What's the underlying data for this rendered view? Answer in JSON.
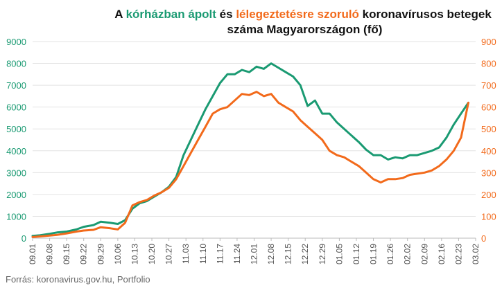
{
  "title": {
    "part1": "A ",
    "part2": "kórházban ápolt",
    "part3": " és ",
    "part4": "lélegeztetésre szoruló",
    "part5": " koronavírusos betegek",
    "line2": "száma Magyarországon  (fő)"
  },
  "source": "Forrás: koronavirus.gov.hu, Portfolio",
  "colors": {
    "hospitalized": "#1a9a72",
    "ventilated": "#f26a1b",
    "grid": "#e3e3e3",
    "axis_text": "#555555"
  },
  "chart_data": {
    "type": "line",
    "x_ticks": [
      "09.01",
      "09.08",
      "09.15",
      "09.22",
      "09.29",
      "10.06",
      "10.13",
      "10.20",
      "10.27",
      "11.03",
      "11.10",
      "11.17",
      "11.24",
      "12.01",
      "12.08",
      "12.15",
      "12.22",
      "12.29",
      "01.05",
      "01.12",
      "01.19",
      "01.26",
      "02.02",
      "02.09",
      "02.16",
      "02.23",
      "03.02"
    ],
    "ylim_left": [
      0,
      9000
    ],
    "ylim_right": [
      0,
      900
    ],
    "y_ticks_left": [
      "0",
      "1000",
      "2000",
      "3000",
      "4000",
      "5000",
      "6000",
      "7000",
      "8000",
      "9000"
    ],
    "y_ticks_right": [
      "0",
      "100",
      "200",
      "300",
      "400",
      "500",
      "600",
      "700",
      "800",
      "900"
    ],
    "series": [
      {
        "name": "kórházban ápolt",
        "axis": "left",
        "values": [
          [
            0,
            100
          ],
          [
            3,
            130
          ],
          [
            7,
            200
          ],
          [
            10,
            260
          ],
          [
            14,
            300
          ],
          [
            18,
            400
          ],
          [
            21,
            520
          ],
          [
            25,
            600
          ],
          [
            28,
            750
          ],
          [
            32,
            700
          ],
          [
            35,
            650
          ],
          [
            38,
            820
          ],
          [
            41,
            1350
          ],
          [
            44,
            1600
          ],
          [
            47,
            1700
          ],
          [
            50,
            1900
          ],
          [
            53,
            2100
          ],
          [
            56,
            2350
          ],
          [
            59,
            2800
          ],
          [
            62,
            3800
          ],
          [
            65,
            4500
          ],
          [
            68,
            5200
          ],
          [
            71,
            5900
          ],
          [
            74,
            6500
          ],
          [
            77,
            7100
          ],
          [
            80,
            7500
          ],
          [
            83,
            7500
          ],
          [
            86,
            7700
          ],
          [
            89,
            7600
          ],
          [
            92,
            7850
          ],
          [
            95,
            7750
          ],
          [
            98,
            8000
          ],
          [
            101,
            7800
          ],
          [
            104,
            7600
          ],
          [
            107,
            7400
          ],
          [
            110,
            7000
          ],
          [
            113,
            6050
          ],
          [
            116,
            6300
          ],
          [
            119,
            5700
          ],
          [
            122,
            5700
          ],
          [
            125,
            5300
          ],
          [
            128,
            5000
          ],
          [
            131,
            4700
          ],
          [
            134,
            4400
          ],
          [
            137,
            4050
          ],
          [
            140,
            3800
          ],
          [
            143,
            3800
          ],
          [
            146,
            3600
          ],
          [
            149,
            3700
          ],
          [
            152,
            3650
          ],
          [
            155,
            3800
          ],
          [
            158,
            3800
          ],
          [
            161,
            3900
          ],
          [
            164,
            4000
          ],
          [
            167,
            4150
          ],
          [
            170,
            4600
          ],
          [
            173,
            5200
          ],
          [
            176,
            5700
          ],
          [
            179,
            6200
          ]
        ]
      },
      {
        "name": "lélegeztetésre szoruló",
        "axis": "right",
        "values": [
          [
            0,
            5
          ],
          [
            3,
            8
          ],
          [
            7,
            12
          ],
          [
            10,
            15
          ],
          [
            14,
            22
          ],
          [
            18,
            30
          ],
          [
            21,
            35
          ],
          [
            25,
            38
          ],
          [
            28,
            50
          ],
          [
            32,
            45
          ],
          [
            35,
            40
          ],
          [
            38,
            70
          ],
          [
            41,
            150
          ],
          [
            44,
            165
          ],
          [
            47,
            175
          ],
          [
            50,
            195
          ],
          [
            53,
            210
          ],
          [
            56,
            230
          ],
          [
            59,
            270
          ],
          [
            62,
            330
          ],
          [
            65,
            390
          ],
          [
            68,
            450
          ],
          [
            71,
            510
          ],
          [
            74,
            570
          ],
          [
            77,
            590
          ],
          [
            80,
            600
          ],
          [
            83,
            630
          ],
          [
            86,
            660
          ],
          [
            89,
            655
          ],
          [
            92,
            670
          ],
          [
            95,
            650
          ],
          [
            98,
            660
          ],
          [
            101,
            620
          ],
          [
            104,
            600
          ],
          [
            107,
            580
          ],
          [
            110,
            540
          ],
          [
            113,
            510
          ],
          [
            116,
            480
          ],
          [
            119,
            450
          ],
          [
            122,
            400
          ],
          [
            125,
            380
          ],
          [
            128,
            370
          ],
          [
            131,
            350
          ],
          [
            134,
            330
          ],
          [
            137,
            300
          ],
          [
            140,
            270
          ],
          [
            143,
            255
          ],
          [
            146,
            270
          ],
          [
            149,
            270
          ],
          [
            152,
            275
          ],
          [
            155,
            290
          ],
          [
            158,
            295
          ],
          [
            161,
            300
          ],
          [
            164,
            310
          ],
          [
            167,
            330
          ],
          [
            170,
            360
          ],
          [
            173,
            400
          ],
          [
            176,
            460
          ],
          [
            179,
            620
          ]
        ]
      }
    ],
    "grid": true,
    "legend": "in title"
  }
}
